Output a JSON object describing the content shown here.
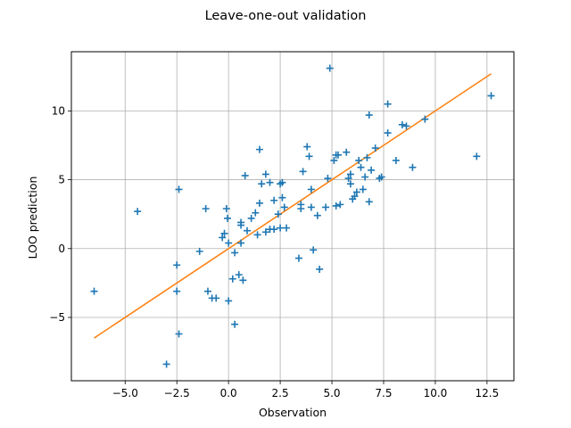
{
  "chart_data": {
    "type": "scatter",
    "title": "Leave-one-out validation",
    "xlabel": "Observation",
    "ylabel": "LOO prediction",
    "xlim": [
      -7.6,
      13.8
    ],
    "ylim": [
      -9.6,
      14.3
    ],
    "xticks": [
      -5.0,
      -2.5,
      0.0,
      2.5,
      5.0,
      7.5,
      10.0,
      12.5
    ],
    "xtick_labels": [
      "−5.0",
      "−2.5",
      "0.0",
      "2.5",
      "5.0",
      "7.5",
      "10.0",
      "12.5"
    ],
    "yticks": [
      -5,
      0,
      5,
      10
    ],
    "ytick_labels": [
      "−5",
      "0",
      "5",
      "10"
    ],
    "grid": true,
    "colors": {
      "points": "#1f77b4",
      "line": "#ff7f0e",
      "grid": "#b0b0b0"
    },
    "series": [
      {
        "kind": "scatter",
        "marker": "plus",
        "x": [
          -6.5,
          -4.4,
          -3.0,
          -2.5,
          -2.5,
          -2.4,
          -2.4,
          -1.4,
          -1.1,
          -1.0,
          -0.8,
          -0.6,
          -0.3,
          -0.2,
          -0.1,
          -0.05,
          0.0,
          0.0,
          0.2,
          0.3,
          0.3,
          0.5,
          0.6,
          0.6,
          0.6,
          0.7,
          0.8,
          0.9,
          1.1,
          1.3,
          1.4,
          1.5,
          1.5,
          1.6,
          1.8,
          1.8,
          2.0,
          2.0,
          2.2,
          2.2,
          2.4,
          2.5,
          2.5,
          2.6,
          2.6,
          2.7,
          2.8,
          3.4,
          3.5,
          3.5,
          3.6,
          3.8,
          3.9,
          4.0,
          4.0,
          4.1,
          4.3,
          4.4,
          4.7,
          4.8,
          4.9,
          5.1,
          5.2,
          5.2,
          5.3,
          5.4,
          5.7,
          5.8,
          5.9,
          5.9,
          6.0,
          6.1,
          6.2,
          6.3,
          6.4,
          6.5,
          6.6,
          6.7,
          6.8,
          6.8,
          6.9,
          7.1,
          7.3,
          7.4,
          7.7,
          7.7,
          8.1,
          8.4,
          8.6,
          8.9,
          9.5,
          12.0,
          12.7
        ],
        "y": [
          -3.1,
          2.7,
          -8.4,
          -1.2,
          -3.1,
          4.3,
          -6.2,
          -0.2,
          2.9,
          -3.1,
          -3.6,
          -3.6,
          0.8,
          1.1,
          2.9,
          2.2,
          -3.8,
          0.4,
          -2.2,
          -0.3,
          -5.5,
          -1.9,
          0.4,
          1.7,
          1.9,
          -2.3,
          5.3,
          1.3,
          2.2,
          2.6,
          1.0,
          7.2,
          3.3,
          4.7,
          1.2,
          5.4,
          1.4,
          4.8,
          3.5,
          1.4,
          2.5,
          1.5,
          4.7,
          4.8,
          3.7,
          3.0,
          1.5,
          -0.7,
          3.2,
          2.9,
          5.6,
          7.4,
          6.7,
          4.3,
          3.0,
          -0.1,
          2.4,
          -1.5,
          3.0,
          5.1,
          13.1,
          6.4,
          6.8,
          3.1,
          6.8,
          3.2,
          7.0,
          5.1,
          5.4,
          4.7,
          3.6,
          3.8,
          4.1,
          6.4,
          5.9,
          4.3,
          5.2,
          6.6,
          3.4,
          9.7,
          5.7,
          7.3,
          5.1,
          5.2,
          8.4,
          10.5,
          6.4,
          9.0,
          8.9,
          5.9,
          9.4,
          6.7,
          11.1
        ]
      },
      {
        "kind": "line",
        "x": [
          -6.5,
          12.7
        ],
        "y": [
          -6.5,
          12.7
        ]
      }
    ]
  }
}
